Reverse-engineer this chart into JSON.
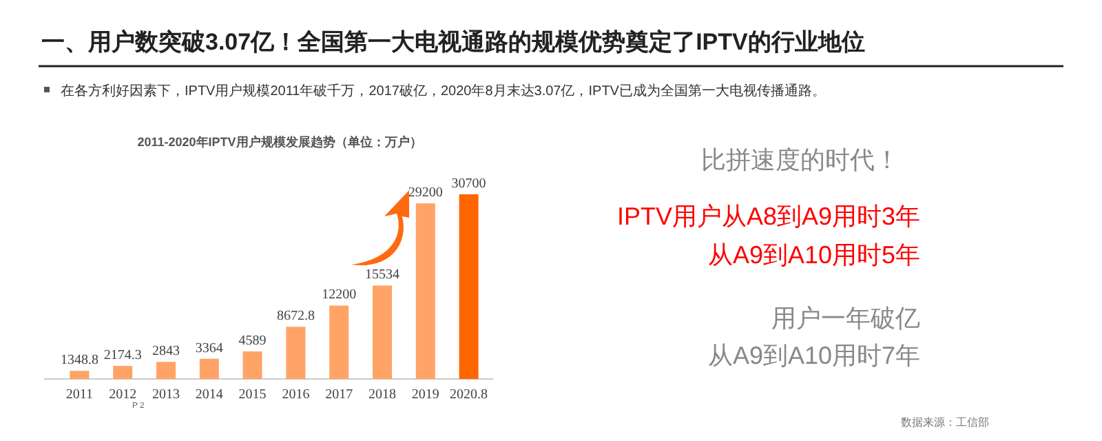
{
  "chart_data": {
    "type": "bar",
    "title": "一、用户数突破3.07亿！全国第一大电视通路的规模优势奠定了IPTV的行业地位",
    "subtitle": "在各方利好因素下，IPTV用户规模2011年破千万，2017破亿，2020年8月末达3.07亿，IPTV已成为全国第一大电视传播通路。",
    "categories": [
      "2011",
      "2012",
      "2013",
      "2014",
      "2015",
      "2016",
      "2017",
      "2018",
      "2019",
      "2020.8"
    ],
    "values": [
      1348.8,
      2174.3,
      2843,
      3364,
      4589,
      8672.8,
      12200,
      15534,
      29200,
      30700
    ],
    "colors": [
      "#ffa466",
      "#ffa466",
      "#ffa466",
      "#ffa466",
      "#ffa466",
      "#ffa466",
      "#ffa466",
      "#ffa466",
      "#ffa466",
      "#ff6600"
    ],
    "data_labels": true,
    "annotations": [
      "2011-2020年IPTV用户规模发展趋势（单位：万户）",
      "比拼速度的时代！",
      "IPTV用户从A8到A9用时3年",
      "从A9到A10用时5年",
      "用户一年破亿",
      "从A9到A10用时7年",
      "数据来源：工信部",
      "P 2"
    ]
  }
}
